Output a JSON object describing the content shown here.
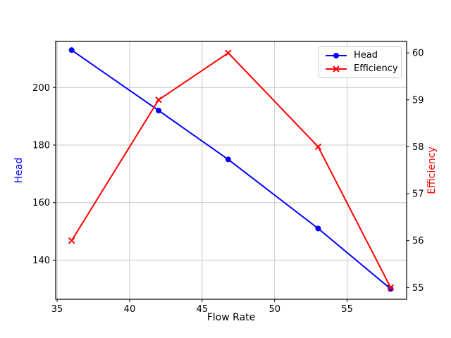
{
  "chart_data": {
    "type": "line",
    "title": "",
    "xlabel": "Flow Rate",
    "ylabel_left": "Head",
    "ylabel_right": "Efficiency",
    "x": [
      36,
      42,
      46.8,
      53,
      58
    ],
    "series": [
      {
        "name": "Head",
        "axis": "left",
        "color": "#0000ff",
        "marker": "circle",
        "values": [
          213,
          192,
          175,
          151,
          130
        ]
      },
      {
        "name": "Efficiency",
        "axis": "right",
        "color": "#ff0000",
        "marker": "x",
        "values": [
          56,
          59,
          60,
          58,
          55
        ]
      }
    ],
    "xlim": [
      34.9,
      59.1
    ],
    "ylim_left": [
      126.4,
      216.1
    ],
    "ylim_right": [
      54.75,
      60.25
    ],
    "xticks": [
      35,
      40,
      45,
      50,
      55
    ],
    "yticks_left": [
      140,
      160,
      180,
      200
    ],
    "yticks_right": [
      55,
      56,
      57,
      58,
      59,
      60
    ],
    "grid": true,
    "legend": {
      "position": "upper right",
      "entries": [
        "Head",
        "Efficiency"
      ]
    }
  },
  "colors": {
    "background": "#ffffff",
    "head_line": "#0000ff",
    "efficiency_line": "#ff0000",
    "grid": "#c8c8c8",
    "spine": "#000000",
    "tick_label": "#000000",
    "legend_border": "#cccccc"
  }
}
